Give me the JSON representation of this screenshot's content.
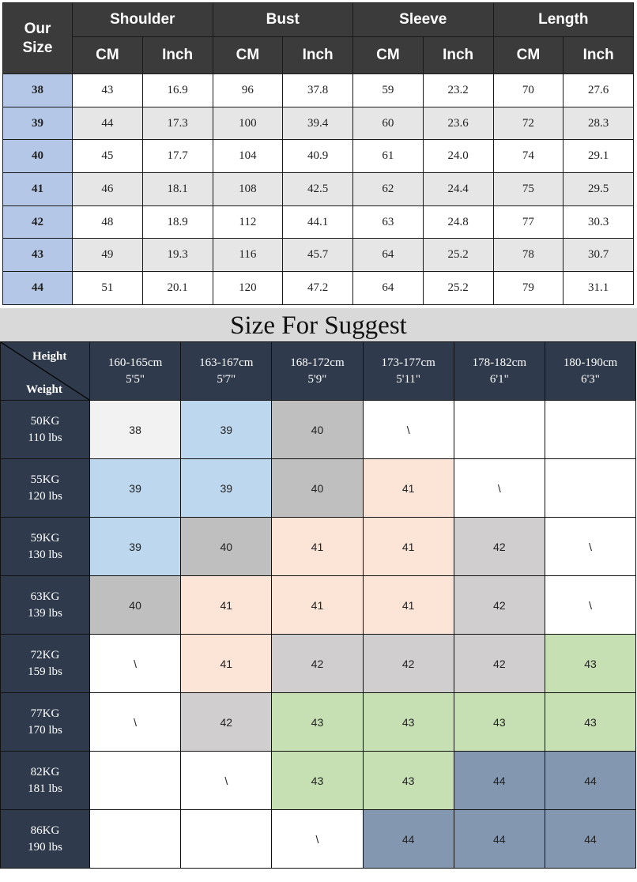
{
  "size_table": {
    "corner": "Our Size",
    "groups": [
      "Shoulder",
      "Bust",
      "Sleeve",
      "Length"
    ],
    "units": [
      "CM",
      "Inch"
    ],
    "rows": [
      {
        "size": "38",
        "values": [
          "43",
          "16.9",
          "96",
          "37.8",
          "59",
          "23.2",
          "70",
          "27.6"
        ]
      },
      {
        "size": "39",
        "values": [
          "44",
          "17.3",
          "100",
          "39.4",
          "60",
          "23.6",
          "72",
          "28.3"
        ]
      },
      {
        "size": "40",
        "values": [
          "45",
          "17.7",
          "104",
          "40.9",
          "61",
          "24.0",
          "74",
          "29.1"
        ]
      },
      {
        "size": "41",
        "values": [
          "46",
          "18.1",
          "108",
          "42.5",
          "62",
          "24.4",
          "75",
          "29.5"
        ]
      },
      {
        "size": "42",
        "values": [
          "48",
          "18.9",
          "112",
          "44.1",
          "63",
          "24.8",
          "77",
          "30.3"
        ]
      },
      {
        "size": "43",
        "values": [
          "49",
          "19.3",
          "116",
          "45.7",
          "64",
          "25.2",
          "78",
          "30.7"
        ]
      },
      {
        "size": "44",
        "values": [
          "51",
          "20.1",
          "120",
          "47.2",
          "64",
          "25.2",
          "79",
          "31.1"
        ]
      }
    ]
  },
  "suggest": {
    "title": "Size For Suggest",
    "corner_height": "Height",
    "corner_weight": "Weight",
    "palette": {
      "w": "#ffffff",
      "l": "#f2f2f2",
      "b": "#bdd7ee",
      "g": "#bfbfbf",
      "p": "#fce4d6",
      "s": "#d0cece",
      "n": "#c6e0b4",
      "d": "#8497b0"
    },
    "heights": [
      {
        "cm": "160-165cm",
        "ft": "5'5\""
      },
      {
        "cm": "163-167cm",
        "ft": "5'7\""
      },
      {
        "cm": "168-172cm",
        "ft": "5'9\""
      },
      {
        "cm": "173-177cm",
        "ft": "5'11\""
      },
      {
        "cm": "178-182cm",
        "ft": "6'1\""
      },
      {
        "cm": "180-190cm",
        "ft": "6'3\""
      }
    ],
    "rows": [
      {
        "kg": "50KG",
        "lbs": "110 lbs",
        "cells": [
          "38",
          "39",
          "40",
          "\\",
          "",
          ""
        ],
        "colors": [
          "l",
          "b",
          "g",
          "w",
          "w",
          "w"
        ]
      },
      {
        "kg": "55KG",
        "lbs": "120 lbs",
        "cells": [
          "39",
          "39",
          "40",
          "41",
          "\\",
          ""
        ],
        "colors": [
          "b",
          "b",
          "g",
          "p",
          "w",
          "w"
        ]
      },
      {
        "kg": "59KG",
        "lbs": "130 lbs",
        "cells": [
          "39",
          "40",
          "41",
          "41",
          "42",
          "\\"
        ],
        "colors": [
          "b",
          "g",
          "p",
          "p",
          "s",
          "w"
        ]
      },
      {
        "kg": "63KG",
        "lbs": "139 lbs",
        "cells": [
          "40",
          "41",
          "41",
          "41",
          "42",
          "\\"
        ],
        "colors": [
          "g",
          "p",
          "p",
          "p",
          "s",
          "w"
        ]
      },
      {
        "kg": "72KG",
        "lbs": "159 lbs",
        "cells": [
          "\\",
          "41",
          "42",
          "42",
          "42",
          "43"
        ],
        "colors": [
          "w",
          "p",
          "s",
          "s",
          "s",
          "n"
        ]
      },
      {
        "kg": "77KG",
        "lbs": "170 lbs",
        "cells": [
          "\\",
          "42",
          "43",
          "43",
          "43",
          "43"
        ],
        "colors": [
          "w",
          "s",
          "n",
          "n",
          "n",
          "n"
        ]
      },
      {
        "kg": "82KG",
        "lbs": "181 lbs",
        "cells": [
          "",
          "\\",
          "43",
          "43",
          "44",
          "44"
        ],
        "colors": [
          "w",
          "w",
          "n",
          "n",
          "d",
          "d"
        ]
      },
      {
        "kg": "86KG",
        "lbs": "190 lbs",
        "cells": [
          "",
          "",
          "\\",
          "44",
          "44",
          "44"
        ],
        "colors": [
          "w",
          "w",
          "w",
          "d",
          "d",
          "d"
        ]
      }
    ]
  }
}
